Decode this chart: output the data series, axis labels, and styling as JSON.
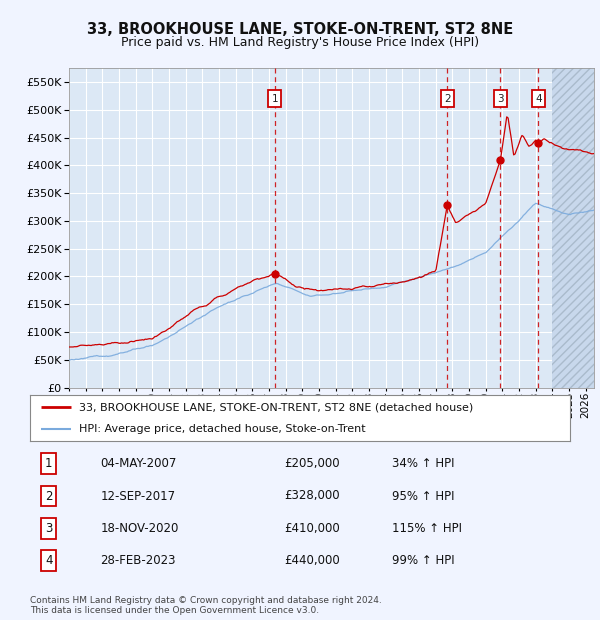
{
  "title": "33, BROOKHOUSE LANE, STOKE-ON-TRENT, ST2 8NE",
  "subtitle": "Price paid vs. HM Land Registry's House Price Index (HPI)",
  "ylim": [
    0,
    575000
  ],
  "xlim_start": 1995.0,
  "xlim_end": 2026.5,
  "yticks": [
    0,
    50000,
    100000,
    150000,
    200000,
    250000,
    300000,
    350000,
    400000,
    450000,
    500000,
    550000
  ],
  "ytick_labels": [
    "£0",
    "£50K",
    "£100K",
    "£150K",
    "£200K",
    "£250K",
    "£300K",
    "£350K",
    "£400K",
    "£450K",
    "£500K",
    "£550K"
  ],
  "bg_color": "#dce8f5",
  "fig_bg_color": "#f0f4ff",
  "grid_color": "#ffffff",
  "sale_line_color": "#cc0000",
  "hpi_line_color": "#7aaadd",
  "vline_color": "#cc0000",
  "hatch_bg": "#c8d8ec",
  "sales": [
    {
      "date_num": 2007.34,
      "price": 205000,
      "label": "1"
    },
    {
      "date_num": 2017.7,
      "price": 328000,
      "label": "2"
    },
    {
      "date_num": 2020.88,
      "price": 410000,
      "label": "3"
    },
    {
      "date_num": 2023.16,
      "price": 440000,
      "label": "4"
    }
  ],
  "legend_sale_label": "33, BROOKHOUSE LANE, STOKE-ON-TRENT, ST2 8NE (detached house)",
  "legend_hpi_label": "HPI: Average price, detached house, Stoke-on-Trent",
  "table_rows": [
    {
      "num": "1",
      "date": "04-MAY-2007",
      "price": "£205,000",
      "change": "34% ↑ HPI"
    },
    {
      "num": "2",
      "date": "12-SEP-2017",
      "price": "£328,000",
      "change": "95% ↑ HPI"
    },
    {
      "num": "3",
      "date": "18-NOV-2020",
      "price": "£410,000",
      "change": "115% ↑ HPI"
    },
    {
      "num": "4",
      "date": "28-FEB-2023",
      "price": "£440,000",
      "change": "99% ↑ HPI"
    }
  ],
  "footer": "Contains HM Land Registry data © Crown copyright and database right 2024.\nThis data is licensed under the Open Government Licence v3.0."
}
